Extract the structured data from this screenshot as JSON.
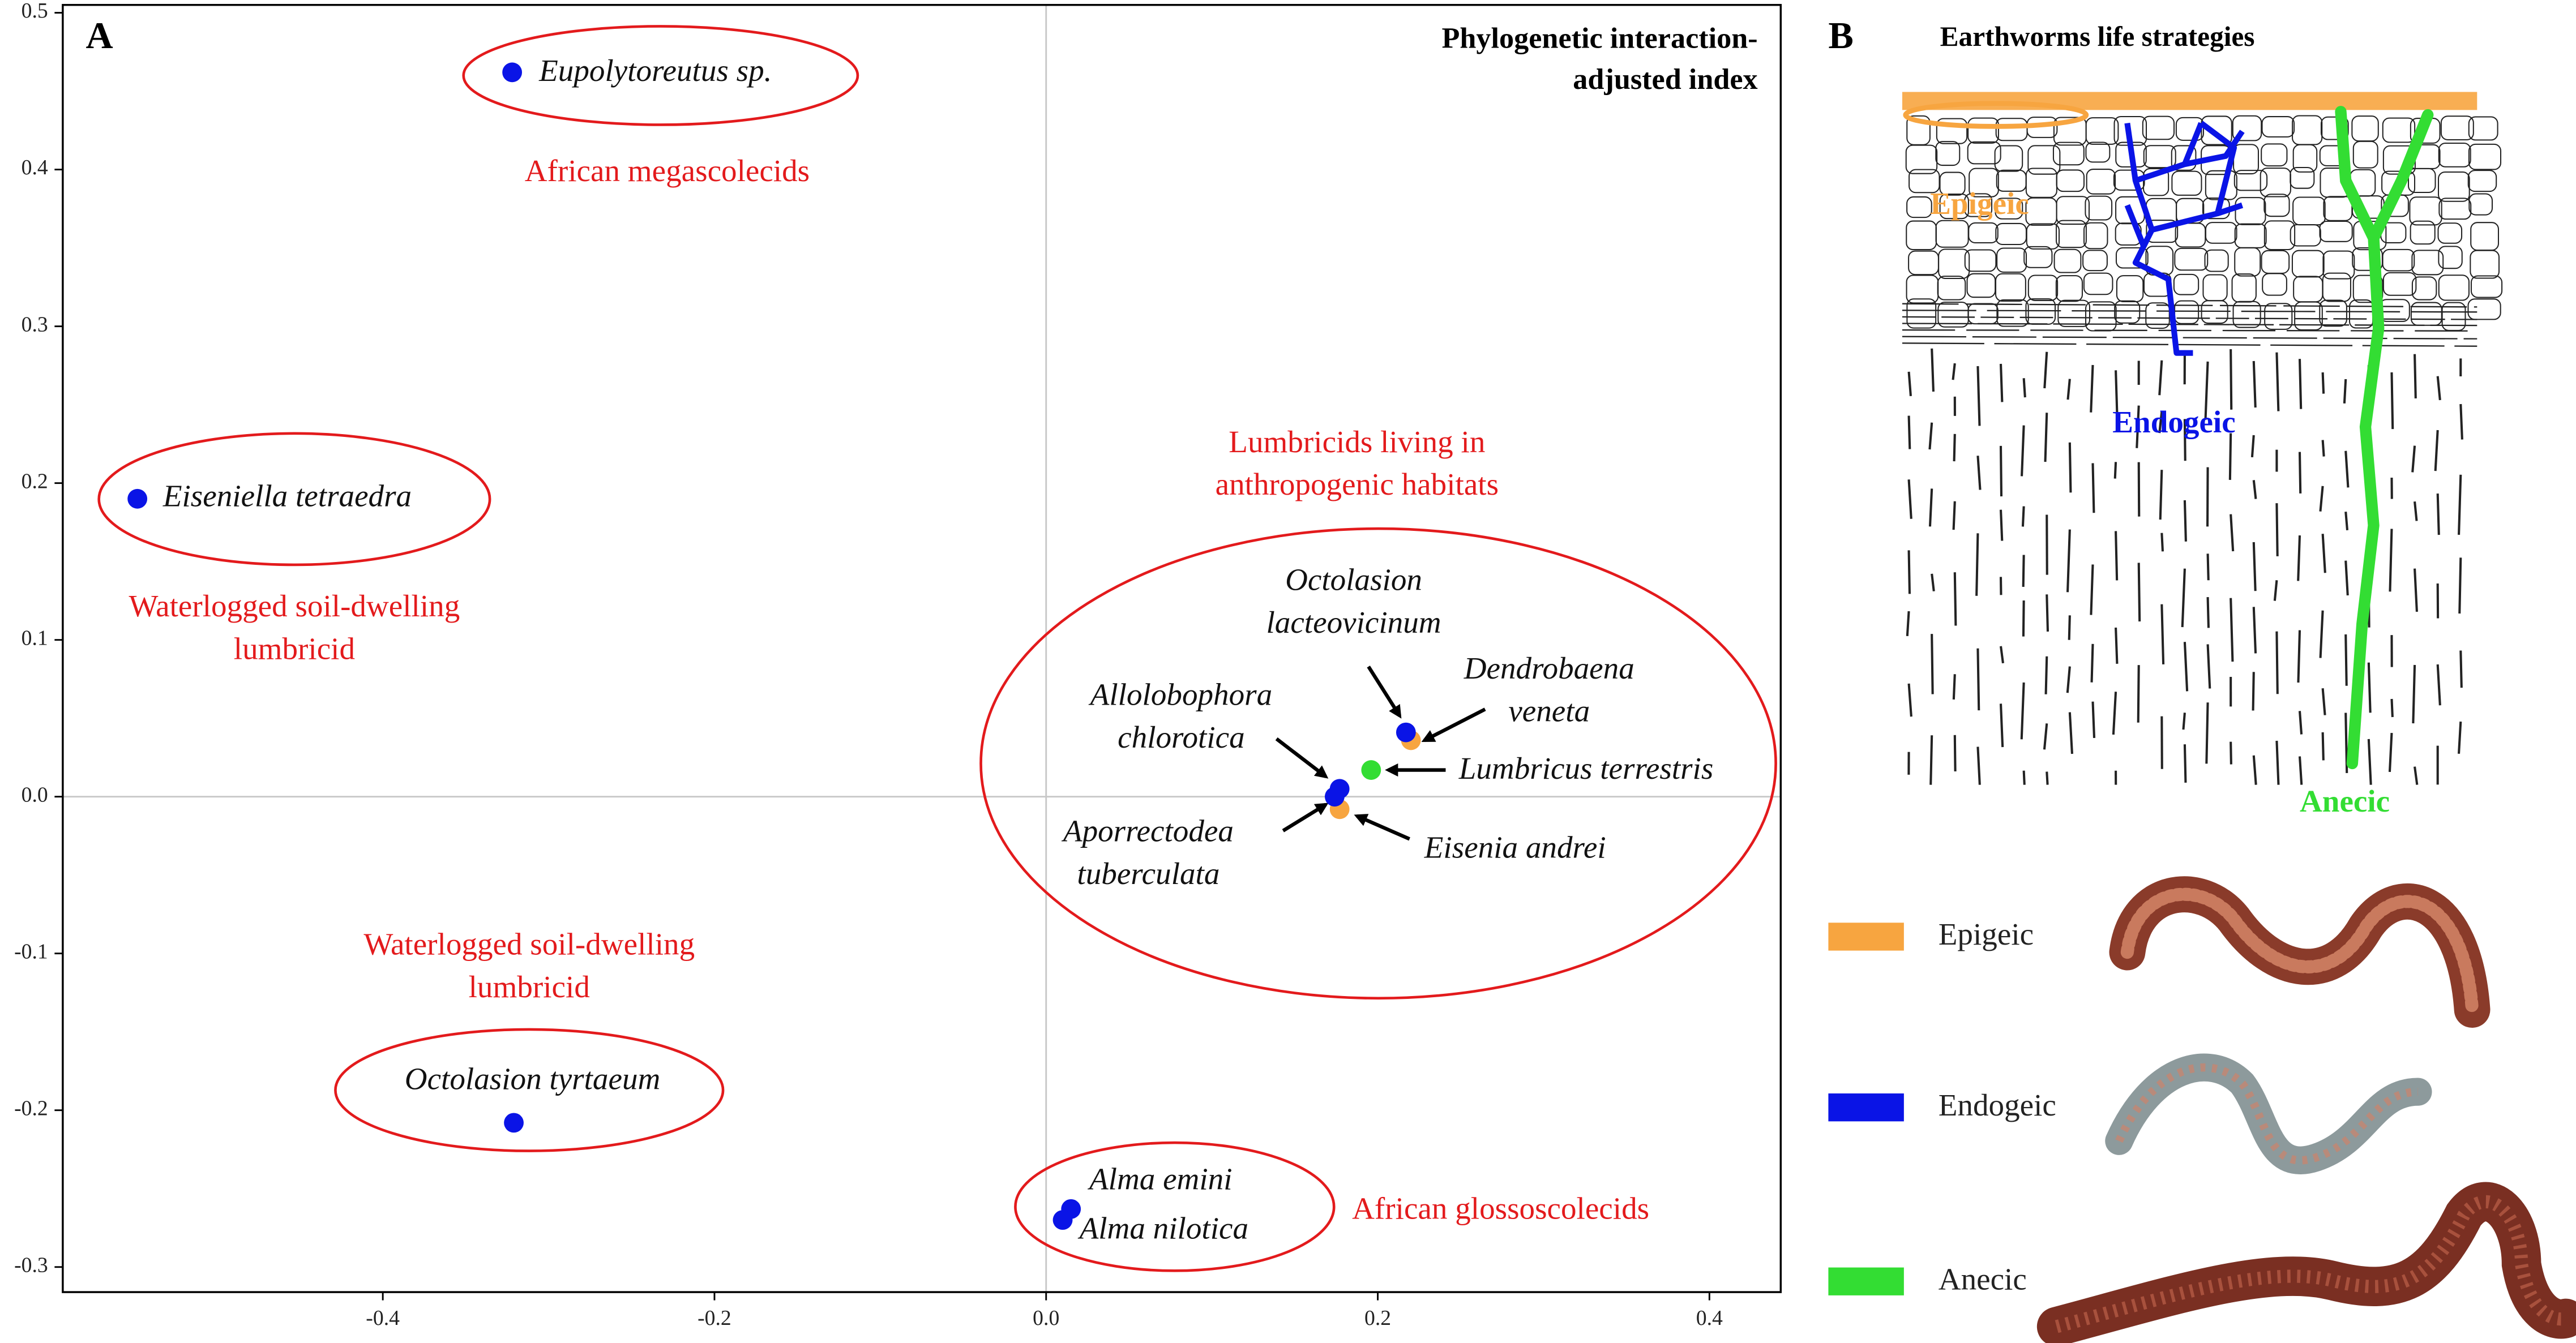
{
  "chart_data": {
    "type": "scatter",
    "panel_label": "A",
    "title": [
      "Phylogenetic interaction-",
      "adjusted index"
    ],
    "xlim": [
      -0.593,
      0.443
    ],
    "ylim": [
      -0.316,
      0.505
    ],
    "xticks": [
      -0.4,
      -0.2,
      {
        "value": 0,
        "label": "0.0"
      },
      0.2,
      0.4
    ],
    "yticks": [
      0.5,
      0.4,
      0.3,
      0.2,
      0.1,
      {
        "value": 0,
        "label": "0.0"
      },
      -0.1,
      -0.2,
      -0.3
    ],
    "zero_lines": true,
    "series": [
      {
        "name": "Epigeic",
        "color": "#f7a540",
        "x": [
          0.22,
          0.177
        ],
        "values": [
          0.036,
          -0.008
        ],
        "labels": [
          [
            "Dendrobaena",
            "veneta"
          ],
          [
            "Eisenia andrei"
          ]
        ]
      },
      {
        "name": "Endogeic",
        "color": "#0a14e6",
        "x": [
          -0.322,
          -0.548,
          -0.321,
          0.015,
          0.01,
          0.217,
          0.177,
          0.174
        ],
        "values": [
          0.462,
          0.19,
          -0.208,
          -0.263,
          -0.27,
          0.041,
          0.005,
          0.0
        ],
        "labels": [
          [
            "Eupolytoreutus sp."
          ],
          [
            "Eiseniella tetraedra"
          ],
          [
            "Octolasion tyrtaeum"
          ],
          [
            "Alma emini"
          ],
          [
            "Alma nilotica"
          ],
          [
            "Octolasion",
            "lacteovicinum"
          ],
          [
            "Allolobophora",
            "chlorotica"
          ],
          [
            "Aporrectodea",
            "tuberculata"
          ]
        ]
      },
      {
        "name": "Anecic",
        "color": "#33dd33",
        "x": [
          0.196
        ],
        "values": [
          0.017
        ],
        "labels": [
          [
            "Lumbricus terrestris"
          ]
        ]
      }
    ],
    "annotations": [
      [
        "African megascolecids"
      ],
      [
        "Waterlogged soil-dwelling",
        "lumbricid"
      ],
      [
        "Waterlogged soil-dwelling",
        "lumbricid"
      ],
      [
        "Lumbricids living in",
        "anthropogenic habitats"
      ],
      [
        "African glossoscolecids"
      ]
    ]
  },
  "panel_b": {
    "panel_label": "B",
    "title": "Earthworms life strategies"
  }
}
